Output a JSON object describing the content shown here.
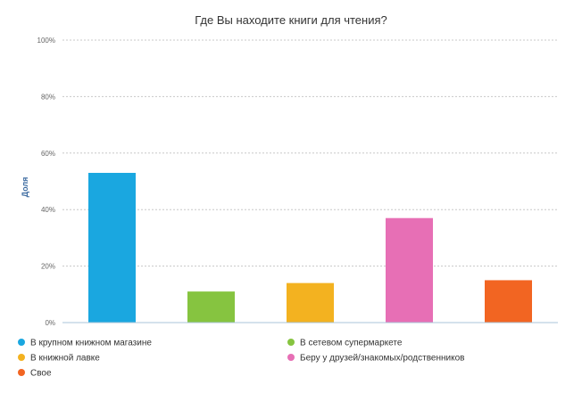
{
  "chart_data": {
    "type": "bar",
    "title": "Где Вы находите книги для чтения?",
    "ylabel": "Доля",
    "xlabel": "",
    "ylim": [
      0,
      100
    ],
    "yticks": [
      0,
      20,
      40,
      60,
      80,
      100
    ],
    "ytick_labels": [
      "0%",
      "20%",
      "40%",
      "60%",
      "80%",
      "100%"
    ],
    "grid": true,
    "legend_position": "bottom",
    "categories": [
      "В крупном книжном магазине",
      "В сетевом супермаркете",
      "В книжной лавке",
      "Беру у друзей/знакомых/родственников",
      "Свое"
    ],
    "values": [
      53,
      11,
      14,
      37,
      15
    ],
    "colors": [
      "#1aa7e0",
      "#86c440",
      "#f3b220",
      "#e76fb5",
      "#f26522"
    ]
  }
}
